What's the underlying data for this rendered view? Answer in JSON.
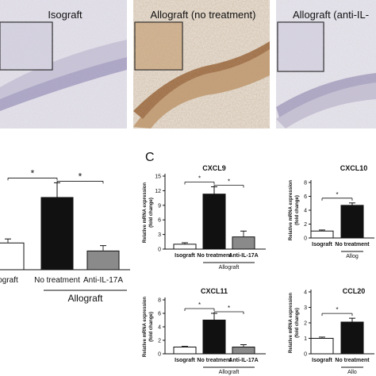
{
  "micrographs": [
    {
      "label": "Isograft"
    },
    {
      "label": "Allograft (no treatment)"
    },
    {
      "label": "Allograft (anti-IL-"
    }
  ],
  "panel_c_letter": "C",
  "chart_data": [
    {
      "id": "left-partial",
      "type": "bar",
      "categories": [
        "ograft",
        "No treatment",
        "Anti-IL-17A"
      ],
      "values": [
        1.0,
        2.7,
        0.7
      ],
      "errors": [
        0.15,
        0.55,
        0.2
      ],
      "ylim": [
        0,
        3.5
      ],
      "group_label": "Allograft",
      "significance": [
        "*",
        "*"
      ],
      "colors": [
        "#ffffff",
        "#111111",
        "#8a8a8a"
      ]
    },
    {
      "id": "cxcl9",
      "type": "bar",
      "title": "CXCL9",
      "ylabel": "Relative mRNA expression\n(fold change)",
      "yticks": [
        "0",
        "3",
        "6",
        "9",
        "12",
        "15"
      ],
      "ylim": [
        0,
        15
      ],
      "categories": [
        "Isograft",
        "No treatment",
        "Anti-IL-17A"
      ],
      "values": [
        1.0,
        11.3,
        2.5
      ],
      "errors": [
        0.3,
        1.5,
        1.2
      ],
      "group_label": "Allograft",
      "significance": [
        "*",
        "*"
      ],
      "colors": [
        "#ffffff",
        "#111111",
        "#8a8a8a"
      ]
    },
    {
      "id": "cxcl10",
      "type": "bar",
      "title": "CXCL10",
      "ylabel": "Relative mRNA expression\n(fold change)",
      "yticks": [
        "0",
        "2",
        "4",
        "6",
        "8"
      ],
      "ylim": [
        0,
        8
      ],
      "categories": [
        "Isograft",
        "No treatment"
      ],
      "values": [
        1.0,
        4.7
      ],
      "errors": [
        0.15,
        0.35
      ],
      "group_label": "Allog",
      "significance": [
        "*"
      ],
      "colors": [
        "#ffffff",
        "#111111"
      ]
    },
    {
      "id": "cxcl11",
      "type": "bar",
      "title": "CXCL11",
      "ylabel": "Relative mRNA expression\n(fold change)",
      "yticks": [
        "0",
        "2",
        "4",
        "6",
        "8"
      ],
      "ylim": [
        0,
        8
      ],
      "categories": [
        "Isograft",
        "No treatment",
        "Anti-IL-17A"
      ],
      "values": [
        1.0,
        5.0,
        1.0
      ],
      "errors": [
        0.1,
        1.0,
        0.35
      ],
      "group_label": "Allograft",
      "significance": [
        "*",
        "*"
      ],
      "colors": [
        "#ffffff",
        "#111111",
        "#8a8a8a"
      ]
    },
    {
      "id": "ccl20",
      "type": "bar",
      "title": "CCL20",
      "ylabel": "Relative mRNA expression\n(fold change)",
      "yticks": [
        "0",
        "1",
        "2",
        "3",
        "4"
      ],
      "ylim": [
        0,
        4
      ],
      "categories": [
        "Isograft",
        "No treatment"
      ],
      "values": [
        1.0,
        2.05
      ],
      "errors": [
        0.08,
        0.25
      ],
      "group_label": "Allo",
      "significance": [
        "*"
      ],
      "colors": [
        "#ffffff",
        "#111111"
      ]
    }
  ]
}
